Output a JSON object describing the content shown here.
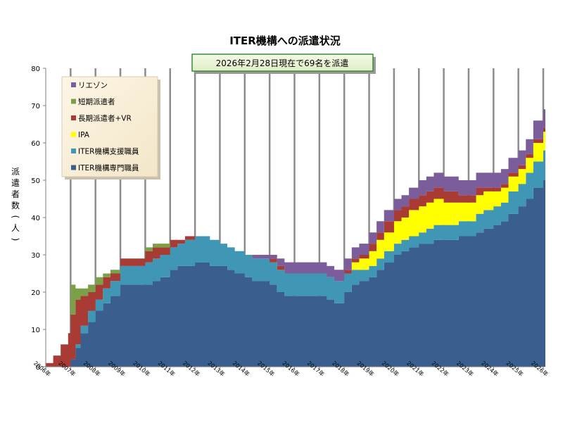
{
  "chart_data": {
    "type": "area",
    "stacked": true,
    "title": "ITER機構への派遣状況",
    "subtitle": "2026年2月28日現在で69名を派遣",
    "ylabel": "派遣者数(人)",
    "xlabel": "",
    "ylim": [
      0,
      80
    ],
    "yticks": [
      0,
      10,
      20,
      30,
      40,
      50,
      60,
      70,
      80
    ],
    "xlim": [
      2006,
      2026
    ],
    "xticks": [
      "2006年",
      "2007年",
      "2008年",
      "2009年",
      "2010年",
      "2011年",
      "2012年",
      "2013年",
      "2014年",
      "2015年",
      "2016年",
      "2017年",
      "2018年",
      "2019年",
      "2020年",
      "2021年",
      "2022年",
      "2023年",
      "2024年",
      "2025年",
      "2026年"
    ],
    "grid": "vertical lines at each year",
    "legend_position": "top-left",
    "x": [
      2006.0,
      2006.3,
      2006.6,
      2006.9,
      2007.0,
      2007.2,
      2007.4,
      2007.7,
      2008.0,
      2008.3,
      2008.6,
      2009.0,
      2009.3,
      2009.6,
      2010.0,
      2010.3,
      2010.6,
      2011.0,
      2011.3,
      2011.6,
      2012.0,
      2012.3,
      2012.6,
      2013.0,
      2013.3,
      2013.6,
      2014.0,
      2014.3,
      2014.6,
      2015.0,
      2015.3,
      2015.6,
      2016.0,
      2016.3,
      2016.6,
      2017.0,
      2017.3,
      2017.6,
      2018.0,
      2018.3,
      2018.6,
      2019.0,
      2019.3,
      2019.6,
      2020.0,
      2020.3,
      2020.6,
      2021.0,
      2021.3,
      2021.6,
      2022.0,
      2022.3,
      2022.6,
      2023.0,
      2023.3,
      2023.6,
      2024.0,
      2024.3,
      2024.6,
      2025.0,
      2025.3,
      2025.6,
      2026.0
    ],
    "series": [
      {
        "name": "ITER機構専門職員",
        "color": "#3a5f8f",
        "values": [
          0,
          0,
          0,
          0,
          2,
          5,
          9,
          12,
          15,
          17,
          19,
          22,
          22,
          22,
          22,
          23,
          24,
          26,
          27,
          27,
          28,
          28,
          27,
          27,
          26,
          25,
          24,
          23,
          23,
          22,
          20,
          19,
          19,
          19,
          19,
          19,
          18,
          17,
          20,
          22,
          23,
          24,
          26,
          28,
          30,
          31,
          32,
          33,
          33,
          34,
          34,
          34,
          35,
          35,
          36,
          37,
          38,
          39,
          41,
          43,
          45,
          48,
          50
        ]
      },
      {
        "name": "ITER機構支援職員",
        "color": "#3f97b5",
        "values": [
          0,
          0,
          0,
          0,
          0,
          1,
          2,
          3,
          3,
          4,
          4,
          5,
          5,
          5,
          6,
          6,
          6,
          6,
          6,
          7,
          7,
          7,
          7,
          6,
          6,
          6,
          6,
          6,
          6,
          6,
          6,
          6,
          6,
          6,
          6,
          6,
          6,
          6,
          5,
          4,
          3,
          3,
          3,
          3,
          3,
          3,
          3,
          3,
          4,
          4,
          4,
          4,
          4,
          4,
          5,
          5,
          5,
          5,
          6,
          6,
          7,
          7,
          8
        ]
      },
      {
        "name": "IPA",
        "color": "#ffff00",
        "values": [
          0,
          0,
          0,
          0,
          0,
          0,
          0,
          0,
          0,
          0,
          0,
          0,
          0,
          0,
          0,
          0,
          0,
          0,
          0,
          0,
          0,
          0,
          0,
          0,
          0,
          0,
          0,
          0,
          0,
          0,
          0,
          0,
          0,
          0,
          0,
          0,
          0,
          0,
          0,
          2,
          3,
          4,
          5,
          5,
          6,
          6,
          7,
          7,
          7,
          7,
          6,
          6,
          5,
          5,
          5,
          5,
          4,
          4,
          4,
          4,
          4,
          5,
          5
        ]
      },
      {
        "name": "長期派遣者+VR",
        "color": "#a93b35",
        "values": [
          1,
          3,
          6,
          9,
          12,
          12,
          8,
          5,
          4,
          3,
          2,
          2,
          2,
          2,
          3,
          3,
          2,
          2,
          1,
          1,
          0,
          0,
          0,
          0,
          0,
          0,
          0,
          0,
          0,
          1,
          1,
          0,
          0,
          0,
          0,
          0,
          0,
          0,
          1,
          1,
          1,
          2,
          2,
          3,
          3,
          3,
          3,
          3,
          3,
          3,
          3,
          3,
          2,
          2,
          2,
          1,
          1,
          1,
          1,
          1,
          1,
          1,
          1
        ]
      },
      {
        "name": "短期派遣者",
        "color": "#7aa048",
        "values": [
          0,
          0,
          0,
          0,
          8,
          3,
          2,
          2,
          2,
          1,
          1,
          0,
          0,
          0,
          1,
          1,
          1,
          0,
          0,
          0,
          0,
          0,
          0,
          0,
          0,
          0,
          0,
          0,
          0,
          0,
          0,
          0,
          0,
          0,
          0,
          0,
          0,
          0,
          0,
          0,
          0,
          0,
          0,
          0,
          0,
          0,
          0,
          0,
          0,
          0,
          0,
          0,
          0,
          0,
          0,
          0,
          0,
          0,
          0,
          0,
          0,
          0,
          0
        ]
      },
      {
        "name": "リエゾン",
        "color": "#7b5d9b",
        "values": [
          0,
          0,
          0,
          0,
          0,
          0,
          0,
          0,
          0,
          0,
          0,
          0,
          0,
          0,
          0,
          0,
          0,
          0,
          0,
          0,
          0,
          0,
          0,
          0,
          0,
          0,
          0,
          1,
          1,
          1,
          2,
          3,
          3,
          3,
          3,
          3,
          3,
          3,
          3,
          3,
          3,
          3,
          3,
          3,
          3,
          3,
          3,
          4,
          4,
          4,
          4,
          4,
          4,
          4,
          4,
          4,
          4,
          4,
          4,
          4,
          4,
          5,
          5
        ]
      }
    ]
  }
}
